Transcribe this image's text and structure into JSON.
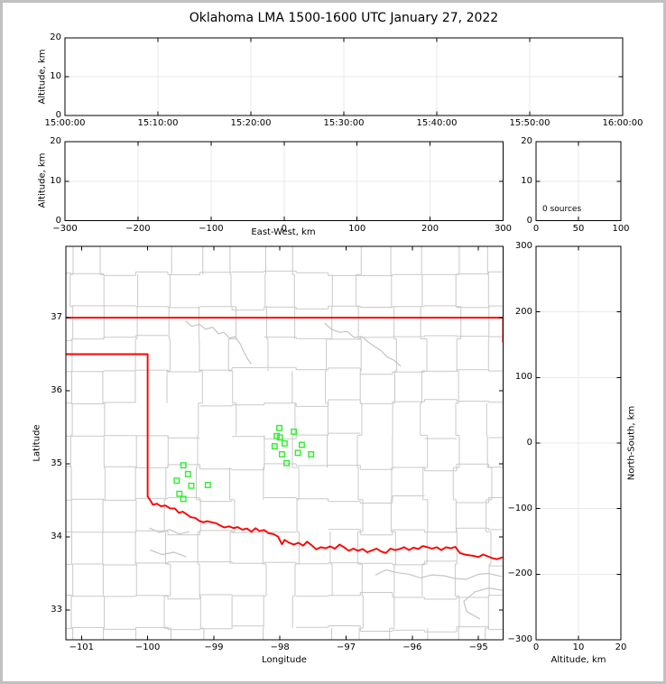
{
  "title": "Oklahoma LMA 1500-1600 UTC January 27, 2022",
  "colors": {
    "frame": "#c0c0c0",
    "background": "#ffffff",
    "axis": "#000000",
    "grid": "#e9e9e9",
    "county": "#c9c9c9",
    "river": "#c4c4c4",
    "state_border": "#ff0000",
    "source_marker": "#2bf02b"
  },
  "chart_data": [
    {
      "id": "alt_vs_time",
      "type": "scatter",
      "title": "Oklahoma LMA 1500-1600 UTC January 27, 2022",
      "xlabel": "",
      "ylabel": "Altitude, km",
      "xlim": [
        0,
        3600
      ],
      "ylim": [
        0,
        20
      ],
      "xtick_values": [
        0,
        600,
        1200,
        1800,
        2400,
        3000,
        3600
      ],
      "xtick_labels": [
        "15:00:00",
        "15:10:00",
        "15:20:00",
        "15:30:00",
        "15:40:00",
        "15:50:00",
        "16:00:00"
      ],
      "ytick_values": [
        0,
        10,
        20
      ],
      "ytick_labels": [
        "0",
        "10",
        "20"
      ],
      "grid": true,
      "legend": "none",
      "points": []
    },
    {
      "id": "alt_vs_eastwest",
      "type": "scatter",
      "xlabel": "East-West, km",
      "ylabel": "Altitude, km",
      "xlim": [
        -300,
        300
      ],
      "ylim": [
        0,
        20
      ],
      "xtick_values": [
        -300,
        -200,
        -100,
        0,
        100,
        200,
        300
      ],
      "xtick_labels": [
        "−300",
        "−200",
        "−100",
        "0",
        "100",
        "200",
        "300"
      ],
      "ytick_values": [
        0,
        10,
        20
      ],
      "ytick_labels": [
        "0",
        "10",
        "20"
      ],
      "grid": true,
      "points": []
    },
    {
      "id": "alt_source_histogram",
      "type": "histogram",
      "annotation": "0 sources",
      "xlabel": "",
      "ylabel": "",
      "xlim": [
        0,
        100
      ],
      "ylim": [
        0,
        20
      ],
      "xtick_values": [
        0,
        50,
        100
      ],
      "xtick_labels": [
        "0",
        "50",
        "100"
      ],
      "ytick_values": [
        0,
        10,
        20
      ],
      "ytick_labels": [
        "0",
        "10",
        "20"
      ],
      "grid": true,
      "points": []
    },
    {
      "id": "plan_view",
      "type": "scatter",
      "xlabel": "Longitude",
      "ylabel": "Latitude",
      "marker": "open-square",
      "xlim": [
        -101.236,
        -94.627
      ],
      "ylim": [
        32.593,
        37.975
      ],
      "xtick_values": [
        -101,
        -100,
        -99,
        -98,
        -97,
        -96,
        -95
      ],
      "xtick_labels": [
        "−101",
        "−100",
        "−99",
        "−98",
        "−97",
        "−96",
        "−95"
      ],
      "ytick_values": [
        33,
        34,
        35,
        36,
        37
      ],
      "ytick_labels": [
        "33",
        "34",
        "35",
        "36",
        "37"
      ],
      "grid": false,
      "points": [
        [
          -98.01,
          35.49
        ],
        [
          -97.79,
          35.44
        ],
        [
          -98.05,
          35.38
        ],
        [
          -98.0,
          35.36
        ],
        [
          -97.93,
          35.28
        ],
        [
          -98.08,
          35.24
        ],
        [
          -97.67,
          35.26
        ],
        [
          -97.73,
          35.15
        ],
        [
          -97.97,
          35.13
        ],
        [
          -97.53,
          35.13
        ],
        [
          -97.9,
          35.01
        ],
        [
          -99.46,
          34.98
        ],
        [
          -99.39,
          34.86
        ],
        [
          -99.56,
          34.77
        ],
        [
          -99.34,
          34.7
        ],
        [
          -99.09,
          34.71
        ],
        [
          -99.52,
          34.59
        ],
        [
          -99.46,
          34.52
        ]
      ]
    },
    {
      "id": "northsouth_vs_alt",
      "type": "scatter",
      "xlabel": "Altitude, km",
      "ylabel": "North-South, km",
      "xlim": [
        0,
        20
      ],
      "ylim": [
        -300,
        300
      ],
      "xtick_values": [
        0,
        10,
        20
      ],
      "xtick_labels": [
        "0",
        "10",
        "20"
      ],
      "ytick_values": [
        -300,
        -200,
        -100,
        0,
        100,
        200,
        300
      ],
      "ytick_labels": [
        "−300",
        "−200",
        "−100",
        "0",
        "100",
        "200",
        "300"
      ],
      "grid": true,
      "points": []
    }
  ],
  "map_overlays": {
    "state_border": [
      [
        [
          -101.236,
          37.0
        ],
        [
          -94.627,
          37.0
        ]
      ],
      [
        [
          -101.236,
          36.5
        ],
        [
          -100.0,
          36.5
        ],
        [
          -100.0,
          34.555
        ]
      ],
      [
        [
          -94.627,
          37.0
        ],
        [
          -94.627,
          36.67
        ]
      ],
      [
        [
          -100.0,
          34.555
        ],
        [
          -99.96,
          34.5
        ],
        [
          -99.92,
          34.44
        ],
        [
          -99.86,
          34.455
        ],
        [
          -99.8,
          34.42
        ],
        [
          -99.73,
          34.43
        ],
        [
          -99.66,
          34.39
        ],
        [
          -99.59,
          34.39
        ],
        [
          -99.53,
          34.33
        ],
        [
          -99.47,
          34.345
        ],
        [
          -99.41,
          34.31
        ],
        [
          -99.35,
          34.27
        ],
        [
          -99.28,
          34.26
        ],
        [
          -99.22,
          34.22
        ],
        [
          -99.16,
          34.2
        ],
        [
          -99.1,
          34.215
        ],
        [
          -99.03,
          34.2
        ],
        [
          -98.96,
          34.185
        ],
        [
          -98.9,
          34.155
        ],
        [
          -98.84,
          34.13
        ],
        [
          -98.77,
          34.145
        ],
        [
          -98.7,
          34.12
        ],
        [
          -98.64,
          34.135
        ],
        [
          -98.57,
          34.1
        ],
        [
          -98.5,
          34.115
        ],
        [
          -98.43,
          34.07
        ],
        [
          -98.37,
          34.12
        ],
        [
          -98.31,
          34.08
        ],
        [
          -98.24,
          34.095
        ],
        [
          -98.17,
          34.05
        ],
        [
          -98.1,
          34.04
        ],
        [
          -98.03,
          34.005
        ],
        [
          -97.97,
          33.9
        ],
        [
          -97.93,
          33.96
        ],
        [
          -97.86,
          33.92
        ],
        [
          -97.79,
          33.895
        ],
        [
          -97.72,
          33.92
        ],
        [
          -97.65,
          33.88
        ],
        [
          -97.59,
          33.935
        ],
        [
          -97.52,
          33.885
        ],
        [
          -97.45,
          33.83
        ],
        [
          -97.38,
          33.86
        ],
        [
          -97.31,
          33.845
        ],
        [
          -97.24,
          33.87
        ],
        [
          -97.17,
          33.84
        ],
        [
          -97.1,
          33.895
        ],
        [
          -97.03,
          33.86
        ],
        [
          -96.96,
          33.81
        ],
        [
          -96.89,
          33.84
        ],
        [
          -96.82,
          33.81
        ],
        [
          -96.75,
          33.835
        ],
        [
          -96.68,
          33.79
        ],
        [
          -96.61,
          33.815
        ],
        [
          -96.54,
          33.84
        ],
        [
          -96.47,
          33.8
        ],
        [
          -96.4,
          33.78
        ],
        [
          -96.33,
          33.84
        ],
        [
          -96.26,
          33.82
        ],
        [
          -96.19,
          33.835
        ],
        [
          -96.12,
          33.86
        ],
        [
          -96.05,
          33.82
        ],
        [
          -95.98,
          33.855
        ],
        [
          -95.91,
          33.835
        ],
        [
          -95.84,
          33.875
        ],
        [
          -95.77,
          33.86
        ],
        [
          -95.7,
          33.84
        ],
        [
          -95.63,
          33.86
        ],
        [
          -95.56,
          33.82
        ],
        [
          -95.49,
          33.86
        ],
        [
          -95.42,
          33.845
        ],
        [
          -95.35,
          33.865
        ],
        [
          -95.28,
          33.78
        ],
        [
          -95.21,
          33.76
        ],
        [
          -95.14,
          33.75
        ],
        [
          -95.07,
          33.74
        ],
        [
          -95.0,
          33.725
        ],
        [
          -94.93,
          33.76
        ],
        [
          -94.86,
          33.735
        ],
        [
          -94.79,
          33.71
        ],
        [
          -94.72,
          33.695
        ],
        [
          -94.66,
          33.715
        ],
        [
          -94.627,
          33.72
        ]
      ]
    ],
    "rivers": [
      [
        [
          -99.42,
          36.95
        ],
        [
          -99.33,
          36.88
        ],
        [
          -99.22,
          36.91
        ],
        [
          -99.12,
          36.84
        ],
        [
          -99.02,
          36.87
        ],
        [
          -98.93,
          36.78
        ],
        [
          -98.85,
          36.8
        ],
        [
          -98.76,
          36.72
        ],
        [
          -98.68,
          36.74
        ],
        [
          -98.6,
          36.64
        ],
        [
          -98.55,
          36.54
        ],
        [
          -98.49,
          36.44
        ],
        [
          -98.44,
          36.37
        ]
      ],
      [
        [
          -97.32,
          36.92
        ],
        [
          -97.22,
          36.84
        ],
        [
          -97.1,
          36.8
        ],
        [
          -96.98,
          36.81
        ],
        [
          -96.88,
          36.73
        ],
        [
          -96.76,
          36.74
        ],
        [
          -96.66,
          36.66
        ],
        [
          -96.56,
          36.6
        ],
        [
          -96.46,
          36.54
        ],
        [
          -96.38,
          36.46
        ],
        [
          -96.28,
          36.42
        ],
        [
          -96.18,
          36.34
        ]
      ],
      [
        [
          -99.97,
          34.12
        ],
        [
          -99.82,
          34.06
        ],
        [
          -99.67,
          34.1
        ],
        [
          -99.52,
          34.04
        ],
        [
          -99.38,
          34.07
        ]
      ],
      [
        [
          -99.96,
          33.82
        ],
        [
          -99.78,
          33.76
        ],
        [
          -99.6,
          33.79
        ],
        [
          -99.42,
          33.73
        ]
      ],
      [
        [
          -96.55,
          33.48
        ],
        [
          -96.4,
          33.55
        ],
        [
          -96.22,
          33.51
        ],
        [
          -96.05,
          33.49
        ],
        [
          -95.88,
          33.44
        ],
        [
          -95.7,
          33.48
        ],
        [
          -95.52,
          33.47
        ],
        [
          -95.35,
          33.43
        ],
        [
          -95.18,
          33.42
        ],
        [
          -95.0,
          33.49
        ],
        [
          -94.85,
          33.5
        ],
        [
          -94.65,
          33.46
        ]
      ],
      [
        [
          -94.63,
          33.27
        ],
        [
          -94.85,
          33.3
        ],
        [
          -95.05,
          33.25
        ],
        [
          -95.22,
          33.12
        ],
        [
          -95.18,
          32.98
        ],
        [
          -94.98,
          32.88
        ]
      ]
    ],
    "county_grid": {
      "cell_lon_deg": 0.485,
      "cell_lat_deg": 0.44,
      "jitter_deg": 0.13,
      "skip_probability": 0.08,
      "seed": 20220127
    }
  }
}
